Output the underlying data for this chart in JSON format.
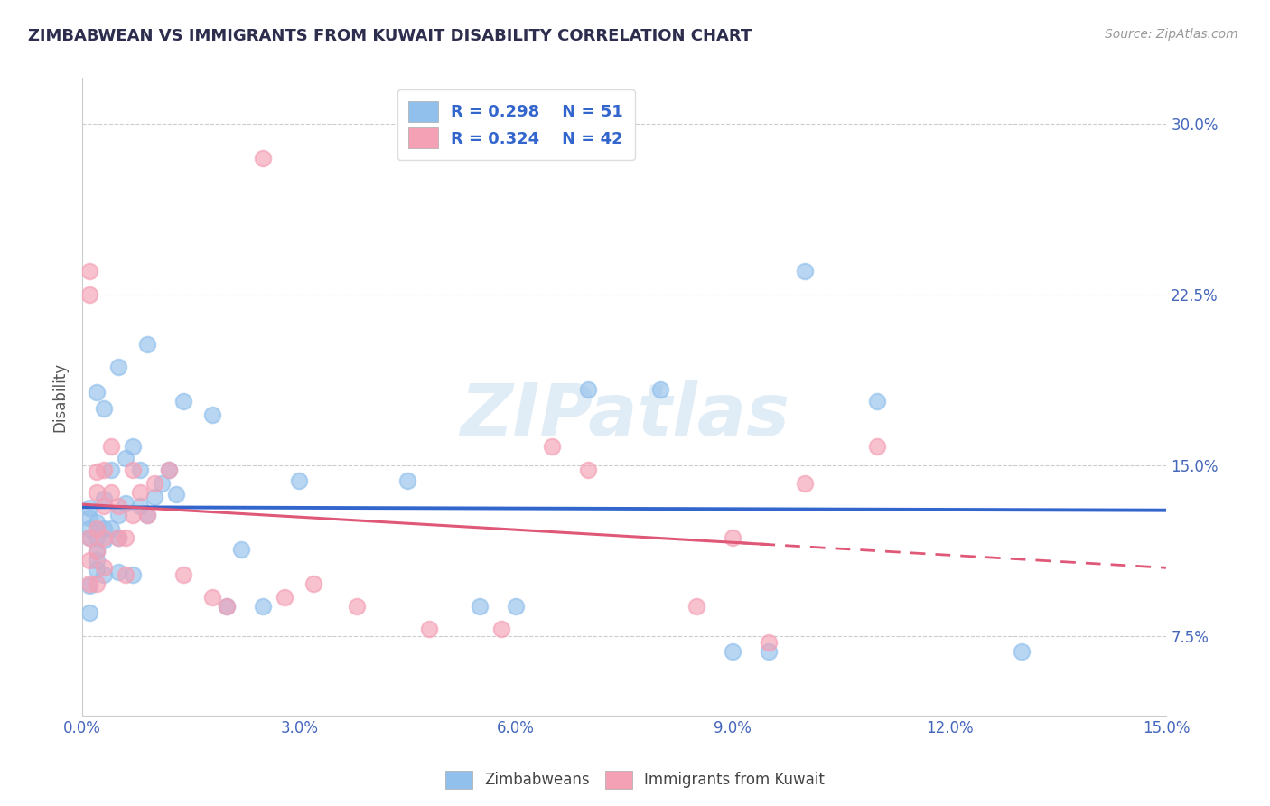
{
  "title": "ZIMBABWEAN VS IMMIGRANTS FROM KUWAIT DISABILITY CORRELATION CHART",
  "source_text": "Source: ZipAtlas.com",
  "ylabel": "Disability",
  "xlim": [
    0.0,
    0.15
  ],
  "ylim": [
    0.04,
    0.32
  ],
  "xticks": [
    0.0,
    0.03,
    0.06,
    0.09,
    0.12,
    0.15
  ],
  "xticklabels": [
    "0.0%",
    "3.0%",
    "6.0%",
    "9.0%",
    "12.0%",
    "15.0%"
  ],
  "yticks": [
    0.075,
    0.15,
    0.225,
    0.3
  ],
  "yticklabels": [
    "7.5%",
    "15.0%",
    "22.5%",
    "30.0%"
  ],
  "blue_color": "#92C0EC",
  "pink_color": "#F4A0B5",
  "blue_line_color": "#3366CC",
  "pink_line_color": "#E05878",
  "legend_label_blue": "Zimbabweans",
  "legend_label_pink": "Immigrants from Kuwait",
  "watermark": "ZIPatlas",
  "blue_scatter_x": [
    0.001,
    0.001,
    0.001,
    0.001,
    0.002,
    0.002,
    0.002,
    0.002,
    0.002,
    0.003,
    0.003,
    0.003,
    0.003,
    0.004,
    0.004,
    0.005,
    0.005,
    0.005,
    0.006,
    0.006,
    0.007,
    0.007,
    0.008,
    0.008,
    0.009,
    0.009,
    0.01,
    0.011,
    0.012,
    0.013,
    0.014,
    0.018,
    0.02,
    0.022,
    0.025,
    0.03,
    0.045,
    0.055,
    0.06,
    0.07,
    0.08,
    0.09,
    0.095,
    0.1,
    0.11,
    0.13,
    0.005,
    0.003,
    0.002,
    0.001,
    0.001
  ],
  "blue_scatter_y": [
    0.127,
    0.131,
    0.122,
    0.118,
    0.125,
    0.118,
    0.112,
    0.108,
    0.104,
    0.135,
    0.122,
    0.117,
    0.102,
    0.148,
    0.122,
    0.128,
    0.118,
    0.103,
    0.153,
    0.133,
    0.158,
    0.102,
    0.148,
    0.132,
    0.128,
    0.203,
    0.136,
    0.142,
    0.148,
    0.137,
    0.178,
    0.172,
    0.088,
    0.113,
    0.088,
    0.143,
    0.143,
    0.088,
    0.088,
    0.183,
    0.183,
    0.068,
    0.068,
    0.235,
    0.178,
    0.068,
    0.193,
    0.175,
    0.182,
    0.097,
    0.085
  ],
  "pink_scatter_x": [
    0.001,
    0.001,
    0.001,
    0.001,
    0.002,
    0.002,
    0.002,
    0.002,
    0.003,
    0.003,
    0.003,
    0.004,
    0.004,
    0.005,
    0.005,
    0.006,
    0.006,
    0.007,
    0.007,
    0.008,
    0.009,
    0.01,
    0.012,
    0.014,
    0.018,
    0.02,
    0.025,
    0.028,
    0.032,
    0.038,
    0.048,
    0.058,
    0.065,
    0.07,
    0.085,
    0.09,
    0.095,
    0.1,
    0.11,
    0.001,
    0.002,
    0.003
  ],
  "pink_scatter_y": [
    0.118,
    0.108,
    0.098,
    0.235,
    0.138,
    0.122,
    0.112,
    0.098,
    0.148,
    0.132,
    0.118,
    0.158,
    0.138,
    0.132,
    0.118,
    0.118,
    0.102,
    0.148,
    0.128,
    0.138,
    0.128,
    0.142,
    0.148,
    0.102,
    0.092,
    0.088,
    0.285,
    0.092,
    0.098,
    0.088,
    0.078,
    0.078,
    0.158,
    0.148,
    0.088,
    0.118,
    0.072,
    0.142,
    0.158,
    0.225,
    0.147,
    0.105
  ],
  "figsize": [
    14.06,
    8.92
  ],
  "dpi": 100
}
